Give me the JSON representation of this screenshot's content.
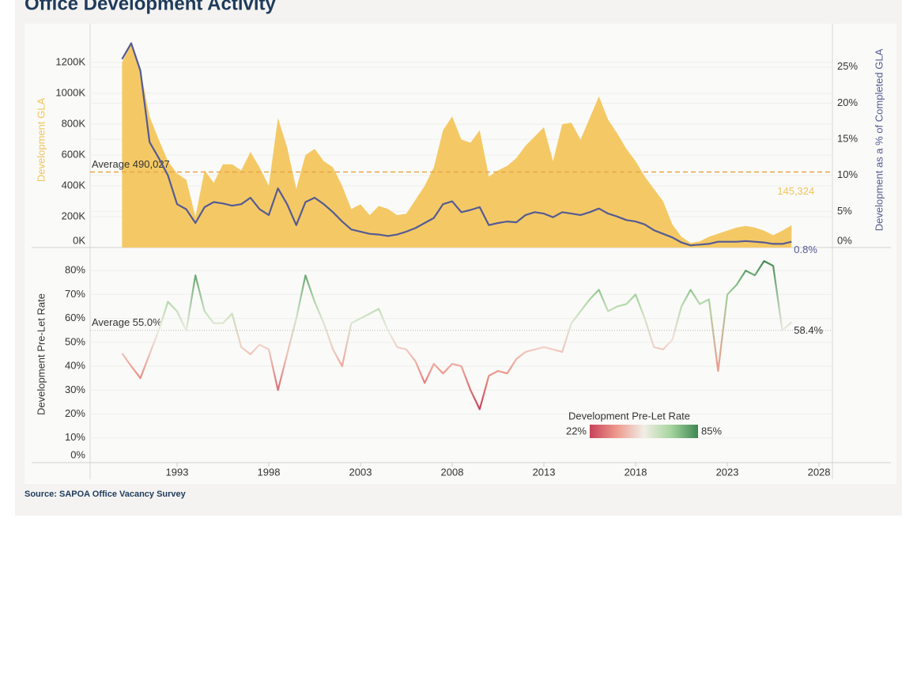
{
  "header": {
    "title": "Office Development Activity"
  },
  "footer": {
    "source": "Source: SAPOA Office Vacancy Survey"
  },
  "chart_data": [
    {
      "type": "combo",
      "ylabel": "Development GLA",
      "y2label": "Development as a % of Completed GLA",
      "xlim": [
        1988.26,
        2028.73
      ],
      "ylim": [
        0,
        1395000
      ],
      "yticks": [
        {
          "value": 0,
          "label": "0K"
        },
        {
          "value": 200000,
          "label": "200K"
        },
        {
          "value": 400000,
          "label": "400K"
        },
        {
          "value": 600000,
          "label": "600K"
        },
        {
          "value": 800000,
          "label": "800K"
        },
        {
          "value": 1000000,
          "label": "1000K"
        },
        {
          "value": 1200000,
          "label": "1200K"
        }
      ],
      "y2lim": [
        0,
        29.8
      ],
      "y2ticks": [
        {
          "value": 0,
          "label": "0%"
        },
        {
          "value": 5,
          "label": "5%"
        },
        {
          "value": 10,
          "label": "10%"
        },
        {
          "value": 15,
          "label": "15%"
        },
        {
          "value": 20,
          "label": "20%"
        },
        {
          "value": 25,
          "label": "25%"
        }
      ],
      "grid": true,
      "average": {
        "value": 490027,
        "label": "Average 490,027",
        "color": "#e8a54a"
      },
      "x": [
        1990,
        1990.5,
        1991,
        1991.5,
        1992,
        1992.5,
        1993,
        1993.5,
        1994,
        1994.5,
        1995,
        1995.5,
        1996,
        1996.5,
        1997,
        1997.5,
        1998,
        1998.5,
        1999,
        1999.5,
        2000,
        2000.5,
        2001,
        2001.5,
        2002,
        2002.5,
        2003,
        2003.5,
        2004,
        2004.5,
        2005,
        2005.5,
        2006,
        2006.5,
        2007,
        2007.5,
        2008,
        2008.5,
        2009,
        2009.5,
        2010,
        2010.5,
        2011,
        2011.5,
        2012,
        2012.5,
        2013,
        2013.5,
        2014,
        2014.5,
        2015,
        2015.5,
        2016,
        2016.5,
        2017,
        2017.5,
        2018,
        2018.5,
        2019,
        2019.5,
        2020,
        2020.5,
        2021,
        2021.5,
        2022,
        2022.5,
        2023,
        2023.5,
        2024,
        2024.5,
        2025,
        2025.5,
        2026,
        2026.5
      ],
      "series": [
        {
          "type": "area",
          "color": "#f4c965",
          "label_color": "#f2c45a",
          "values": [
            1200000,
            1320000,
            1150000,
            850000,
            700000,
            560000,
            480000,
            440000,
            200000,
            500000,
            420000,
            540000,
            540000,
            500000,
            620000,
            520000,
            400000,
            840000,
            650000,
            380000,
            600000,
            640000,
            560000,
            520000,
            400000,
            250000,
            280000,
            210000,
            270000,
            250000,
            210000,
            220000,
            310000,
            400000,
            520000,
            760000,
            850000,
            700000,
            680000,
            760000,
            460000,
            500000,
            530000,
            580000,
            660000,
            720000,
            780000,
            560000,
            800000,
            810000,
            700000,
            840000,
            980000,
            830000,
            740000,
            640000,
            560000,
            460000,
            380000,
            300000,
            150000,
            70000,
            30000,
            40000,
            70000,
            90000,
            110000,
            130000,
            140000,
            130000,
            110000,
            80000,
            110000,
            145324
          ],
          "value_labels": [
            null,
            null,
            null,
            null,
            null,
            null,
            null,
            null,
            null,
            null,
            null,
            null,
            null,
            null,
            null,
            null,
            null,
            null,
            null,
            null,
            null,
            null,
            null,
            null,
            null,
            null,
            null,
            null,
            null,
            null,
            null,
            null,
            null,
            null,
            null,
            null,
            null,
            null,
            null,
            null,
            null,
            null,
            null,
            null,
            null,
            null,
            null,
            null,
            null,
            null,
            null,
            null,
            null,
            null,
            null,
            null,
            null,
            null,
            null,
            null,
            null,
            null,
            null,
            null,
            null,
            null,
            null,
            null,
            null,
            null,
            null,
            null,
            null,
            "145,324"
          ]
        },
        {
          "type": "line",
          "axis": "y2",
          "color": "#555b93",
          "label_color": "#555b93",
          "values": [
            26.1,
            28.3,
            24.5,
            14.6,
            12.4,
            10.0,
            6.0,
            5.3,
            3.4,
            5.6,
            6.3,
            6.1,
            5.8,
            6.0,
            6.9,
            5.3,
            4.5,
            8.2,
            6.0,
            3.1,
            6.3,
            6.9,
            6.0,
            4.9,
            3.6,
            2.5,
            2.2,
            1.9,
            1.8,
            1.6,
            1.8,
            2.2,
            2.7,
            3.4,
            4.1,
            6.0,
            6.4,
            4.9,
            5.2,
            5.6,
            3.1,
            3.4,
            3.6,
            3.5,
            4.5,
            4.9,
            4.7,
            4.2,
            4.9,
            4.7,
            4.5,
            4.9,
            5.4,
            4.7,
            4.3,
            3.8,
            3.6,
            3.2,
            2.4,
            1.9,
            1.4,
            0.7,
            0.3,
            0.4,
            0.5,
            0.8,
            0.8,
            0.8,
            0.9,
            0.8,
            0.7,
            0.5,
            0.5,
            0.8
          ],
          "value_labels": [
            null,
            null,
            null,
            null,
            null,
            null,
            null,
            null,
            null,
            null,
            null,
            null,
            null,
            null,
            null,
            null,
            null,
            null,
            null,
            null,
            null,
            null,
            null,
            null,
            null,
            null,
            null,
            null,
            null,
            null,
            null,
            null,
            null,
            null,
            null,
            null,
            null,
            null,
            null,
            null,
            null,
            null,
            null,
            null,
            null,
            null,
            null,
            null,
            null,
            null,
            null,
            null,
            null,
            null,
            null,
            null,
            null,
            null,
            null,
            null,
            null,
            null,
            null,
            null,
            null,
            null,
            null,
            null,
            null,
            null,
            null,
            null,
            null,
            "0.8%"
          ]
        }
      ]
    },
    {
      "type": "line",
      "ylabel": "Development Pre-Let Rate",
      "xlim": [
        1988.26,
        2028.73
      ],
      "xticks": [
        1993,
        1998,
        2003,
        2008,
        2013,
        2018,
        2023,
        2028
      ],
      "ylim": [
        0,
        88
      ],
      "yticks": [
        {
          "value": 0,
          "label": "0%"
        },
        {
          "value": 10,
          "label": "10%"
        },
        {
          "value": 20,
          "label": "20%"
        },
        {
          "value": 30,
          "label": "30%"
        },
        {
          "value": 40,
          "label": "40%"
        },
        {
          "value": 50,
          "label": "50%"
        },
        {
          "value": 60,
          "label": "60%"
        },
        {
          "value": 70,
          "label": "70%"
        },
        {
          "value": 80,
          "label": "80%"
        }
      ],
      "grid": true,
      "average": {
        "value": 55.0,
        "label": "Average 55.0%",
        "color": "#b8b8b8"
      },
      "color_scale": {
        "title": "Development Pre-Let Rate",
        "range": [
          {
            "value": 22,
            "label": "22%"
          },
          {
            "value": 85,
            "label": "85%"
          }
        ],
        "colors": [
          "#c8435a",
          "#ee9a8e",
          "#f1eee6",
          "#a6d59e",
          "#3e8652"
        ]
      },
      "x": [
        1990,
        1990.5,
        1991,
        1991.5,
        1992,
        1992.5,
        1993,
        1993.5,
        1994,
        1994.5,
        1995,
        1995.5,
        1996,
        1996.5,
        1997,
        1997.5,
        1998,
        1998.5,
        1999,
        1999.5,
        2000,
        2000.5,
        2001,
        2001.5,
        2002,
        2002.5,
        2003,
        2003.5,
        2004,
        2004.5,
        2005,
        2005.5,
        2006,
        2006.5,
        2007,
        2007.5,
        2008,
        2008.5,
        2009,
        2009.5,
        2010,
        2010.5,
        2011,
        2011.5,
        2012,
        2012.5,
        2013,
        2013.5,
        2014,
        2014.5,
        2015,
        2015.5,
        2016,
        2016.5,
        2017,
        2017.5,
        2018,
        2018.5,
        2019,
        2019.5,
        2020,
        2020.5,
        2021,
        2021.5,
        2022,
        2022.5,
        2023,
        2023.5,
        2024,
        2024.5,
        2025,
        2025.5,
        2026,
        2026.5
      ],
      "series": [
        {
          "type": "line",
          "label_color": "#333333",
          "values": [
            45.4,
            40,
            35,
            45,
            55,
            67,
            63,
            55,
            78,
            63,
            58,
            58,
            62,
            48,
            45,
            49,
            47,
            30,
            45,
            60,
            78,
            67,
            58,
            47,
            40,
            58,
            60,
            62,
            64,
            55,
            48,
            47,
            42,
            33,
            41,
            37,
            41,
            40,
            30,
            22,
            36,
            38,
            37,
            43,
            46,
            47,
            48,
            47,
            46,
            58,
            63,
            68,
            72,
            63,
            65,
            66,
            70,
            60,
            48,
            47,
            51,
            65,
            72,
            66,
            68,
            38,
            70,
            74,
            80,
            78,
            84,
            82,
            55,
            58.4
          ],
          "value_labels": [
            null,
            null,
            null,
            null,
            null,
            null,
            null,
            null,
            null,
            null,
            null,
            null,
            null,
            null,
            null,
            null,
            null,
            null,
            null,
            null,
            null,
            null,
            null,
            null,
            null,
            null,
            null,
            null,
            null,
            null,
            null,
            null,
            null,
            null,
            null,
            null,
            null,
            null,
            null,
            null,
            null,
            null,
            null,
            null,
            null,
            null,
            null,
            null,
            null,
            null,
            null,
            null,
            null,
            null,
            null,
            null,
            null,
            null,
            null,
            null,
            null,
            null,
            null,
            null,
            null,
            null,
            null,
            null,
            null,
            null,
            null,
            null,
            null,
            "58.4%"
          ]
        }
      ]
    }
  ]
}
